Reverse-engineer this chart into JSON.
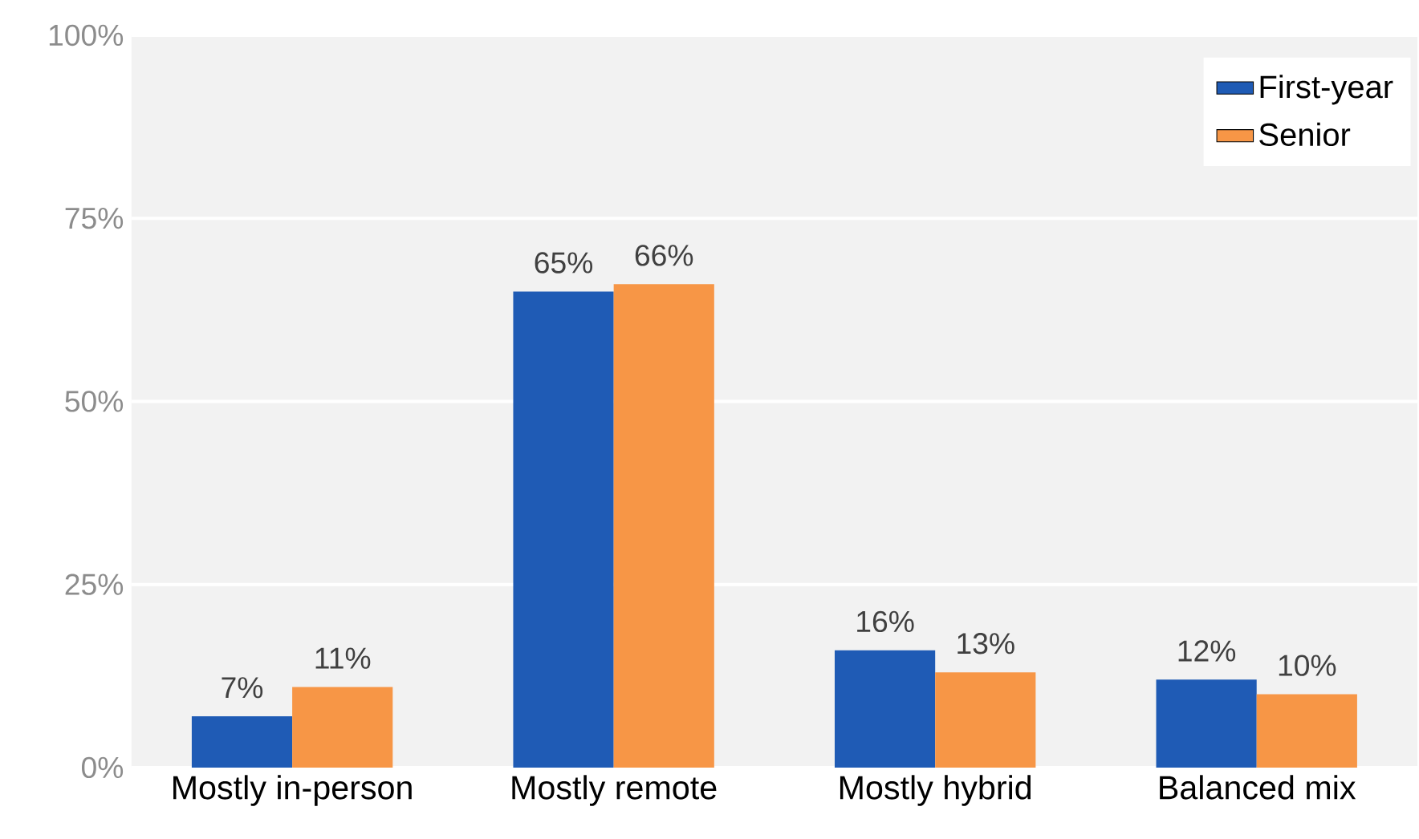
{
  "chart_data": {
    "type": "bar",
    "categories": [
      "Mostly in-person",
      "Mostly remote",
      "Mostly hybrid",
      "Balanced mix"
    ],
    "series": [
      {
        "name": "First-year",
        "color": "#1f5bb5",
        "values": [
          7,
          65,
          16,
          12
        ],
        "value_labels": [
          "7%",
          "65%",
          "16%",
          "12%"
        ]
      },
      {
        "name": "Senior",
        "color": "#f79646",
        "values": [
          11,
          66,
          13,
          10
        ],
        "value_labels": [
          "11%",
          "66%",
          "13%",
          "10%"
        ]
      }
    ],
    "ylim": [
      0,
      100
    ],
    "yticks": [
      {
        "value": 0,
        "label": "0%"
      },
      {
        "value": 25,
        "label": "25%"
      },
      {
        "value": 50,
        "label": "50%"
      },
      {
        "value": 75,
        "label": "75%"
      },
      {
        "value": 100,
        "label": "100%"
      }
    ],
    "grid": "y",
    "legend": "top right"
  }
}
